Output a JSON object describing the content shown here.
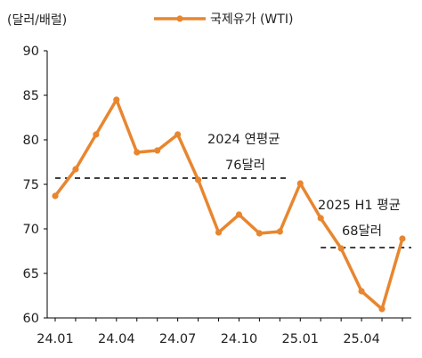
{
  "chart_data": {
    "type": "line",
    "unit_label": "(달러/배럴)",
    "series": [
      {
        "name": "국제유가 (WTI)",
        "color": "#E8862F",
        "values": [
          73.7,
          76.7,
          80.6,
          84.5,
          78.6,
          78.8,
          80.6,
          75.5,
          69.6,
          71.6,
          69.5,
          69.7,
          75.1,
          71.2,
          67.8,
          63.0,
          61.0,
          68.9
        ]
      }
    ],
    "x": [
      "24.01",
      "24.02",
      "24.03",
      "24.04",
      "24.05",
      "24.06",
      "24.07",
      "24.08",
      "24.09",
      "24.10",
      "24.11",
      "24.12",
      "25.01",
      "25.02",
      "25.03",
      "25.04",
      "25.05",
      "25.06"
    ],
    "x_tick_labels": [
      "24.01",
      "24.04",
      "24.07",
      "24.10",
      "25.01",
      "25.04"
    ],
    "ylim": [
      60,
      90
    ],
    "y_ticks": [
      60,
      65,
      70,
      75,
      80,
      85,
      90
    ],
    "legend_position": "top",
    "annotations": [
      {
        "title": "2024 연평균",
        "value_label": "76달러",
        "value": 75.7,
        "from": "24.01",
        "to": "24.12"
      },
      {
        "title": "2025 H1 평균",
        "value_label": "68달러",
        "value": 67.9,
        "from": "25.02",
        "to": "25.06"
      }
    ]
  }
}
